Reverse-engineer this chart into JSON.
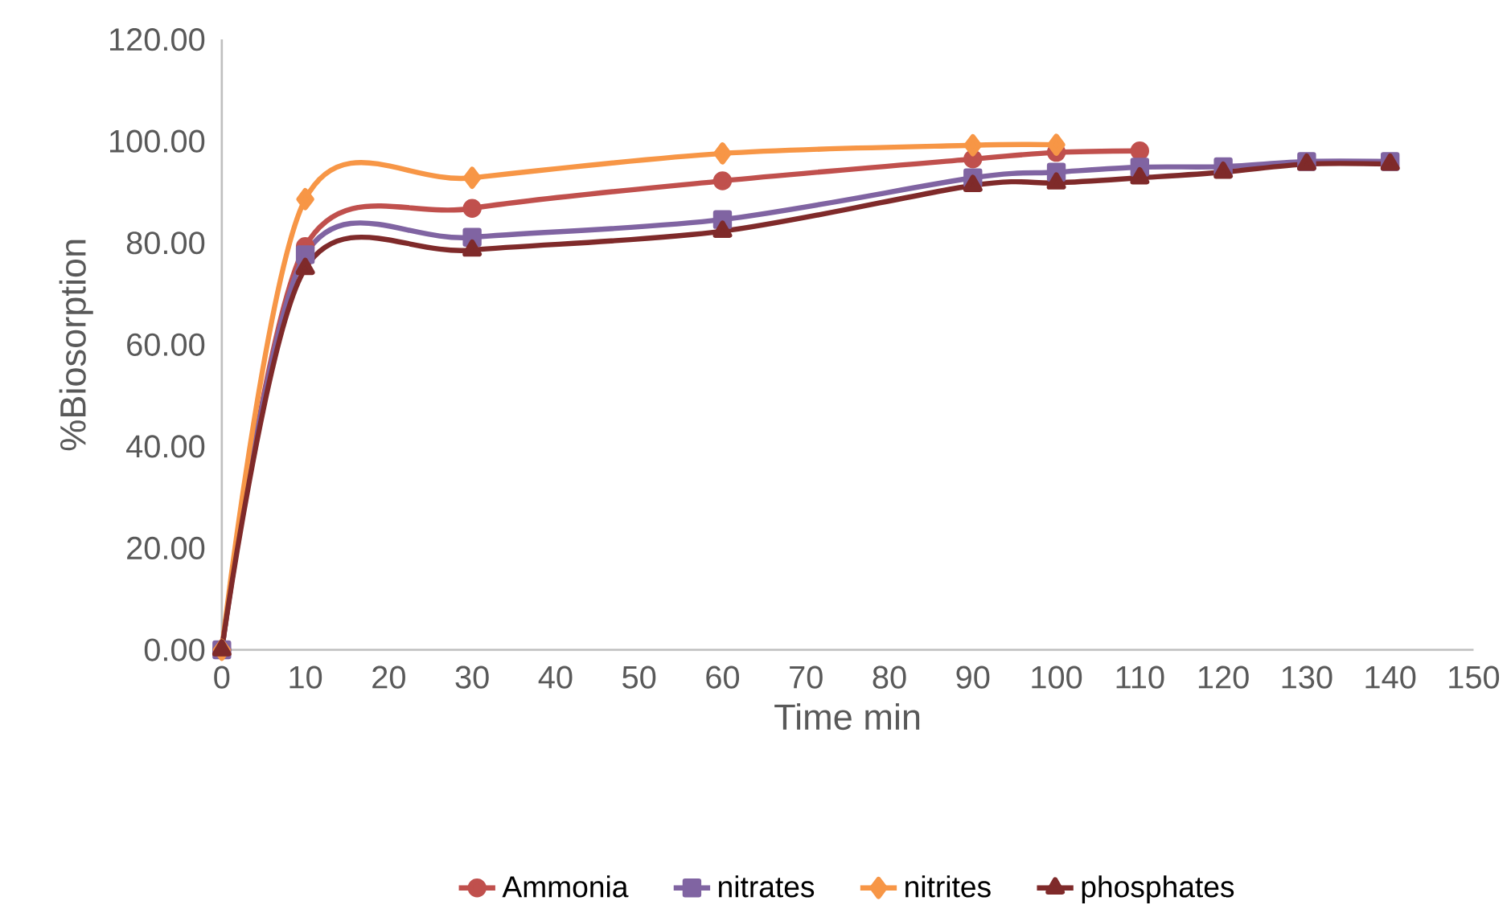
{
  "chart_data": {
    "type": "line",
    "xlabel": "Time min",
    "ylabel": "%Biosorption",
    "xlim": [
      0,
      150
    ],
    "xticks": [
      0,
      10,
      20,
      30,
      40,
      50,
      60,
      70,
      80,
      90,
      100,
      110,
      120,
      130,
      140,
      150
    ],
    "ylim": [
      0,
      120
    ],
    "yticks": [
      {
        "value": 0,
        "label": "0.00"
      },
      {
        "value": 20,
        "label": "20.00"
      },
      {
        "value": 40,
        "label": "40.00"
      },
      {
        "value": 60,
        "label": "60.00"
      },
      {
        "value": 80,
        "label": "80.00"
      },
      {
        "value": 100,
        "label": "100.00"
      },
      {
        "value": 120,
        "label": "120.00"
      }
    ],
    "grid": false,
    "legend": "bottom",
    "series": [
      {
        "name": "Ammonia",
        "color": "#c0504d",
        "marker": "circle",
        "x": [
          0,
          10,
          30,
          60,
          90,
          100,
          110
        ],
        "values": [
          0,
          79.3,
          86.8,
          92.2,
          96.5,
          97.8,
          98.1
        ]
      },
      {
        "name": "nitrates",
        "color": "#8064a2",
        "marker": "square",
        "x": [
          0,
          10,
          30,
          60,
          90,
          100,
          110,
          120,
          130,
          140
        ],
        "values": [
          0,
          77.7,
          81.1,
          84.6,
          92.8,
          93.9,
          94.9,
          95.0,
          96.0,
          96.0
        ]
      },
      {
        "name": "nitrites",
        "color": "#f79646",
        "marker": "diamond",
        "x": [
          0,
          10,
          30,
          60,
          90,
          100
        ],
        "values": [
          0,
          88.6,
          92.8,
          97.6,
          99.2,
          99.3
        ]
      },
      {
        "name": "phosphates",
        "color": "#7f2a2a",
        "marker": "triangle",
        "x": [
          0,
          10,
          30,
          60,
          90,
          100,
          110,
          120,
          130,
          140
        ],
        "values": [
          0,
          75.0,
          78.6,
          82.3,
          91.3,
          91.8,
          92.8,
          93.9,
          95.5,
          95.5
        ]
      }
    ]
  }
}
